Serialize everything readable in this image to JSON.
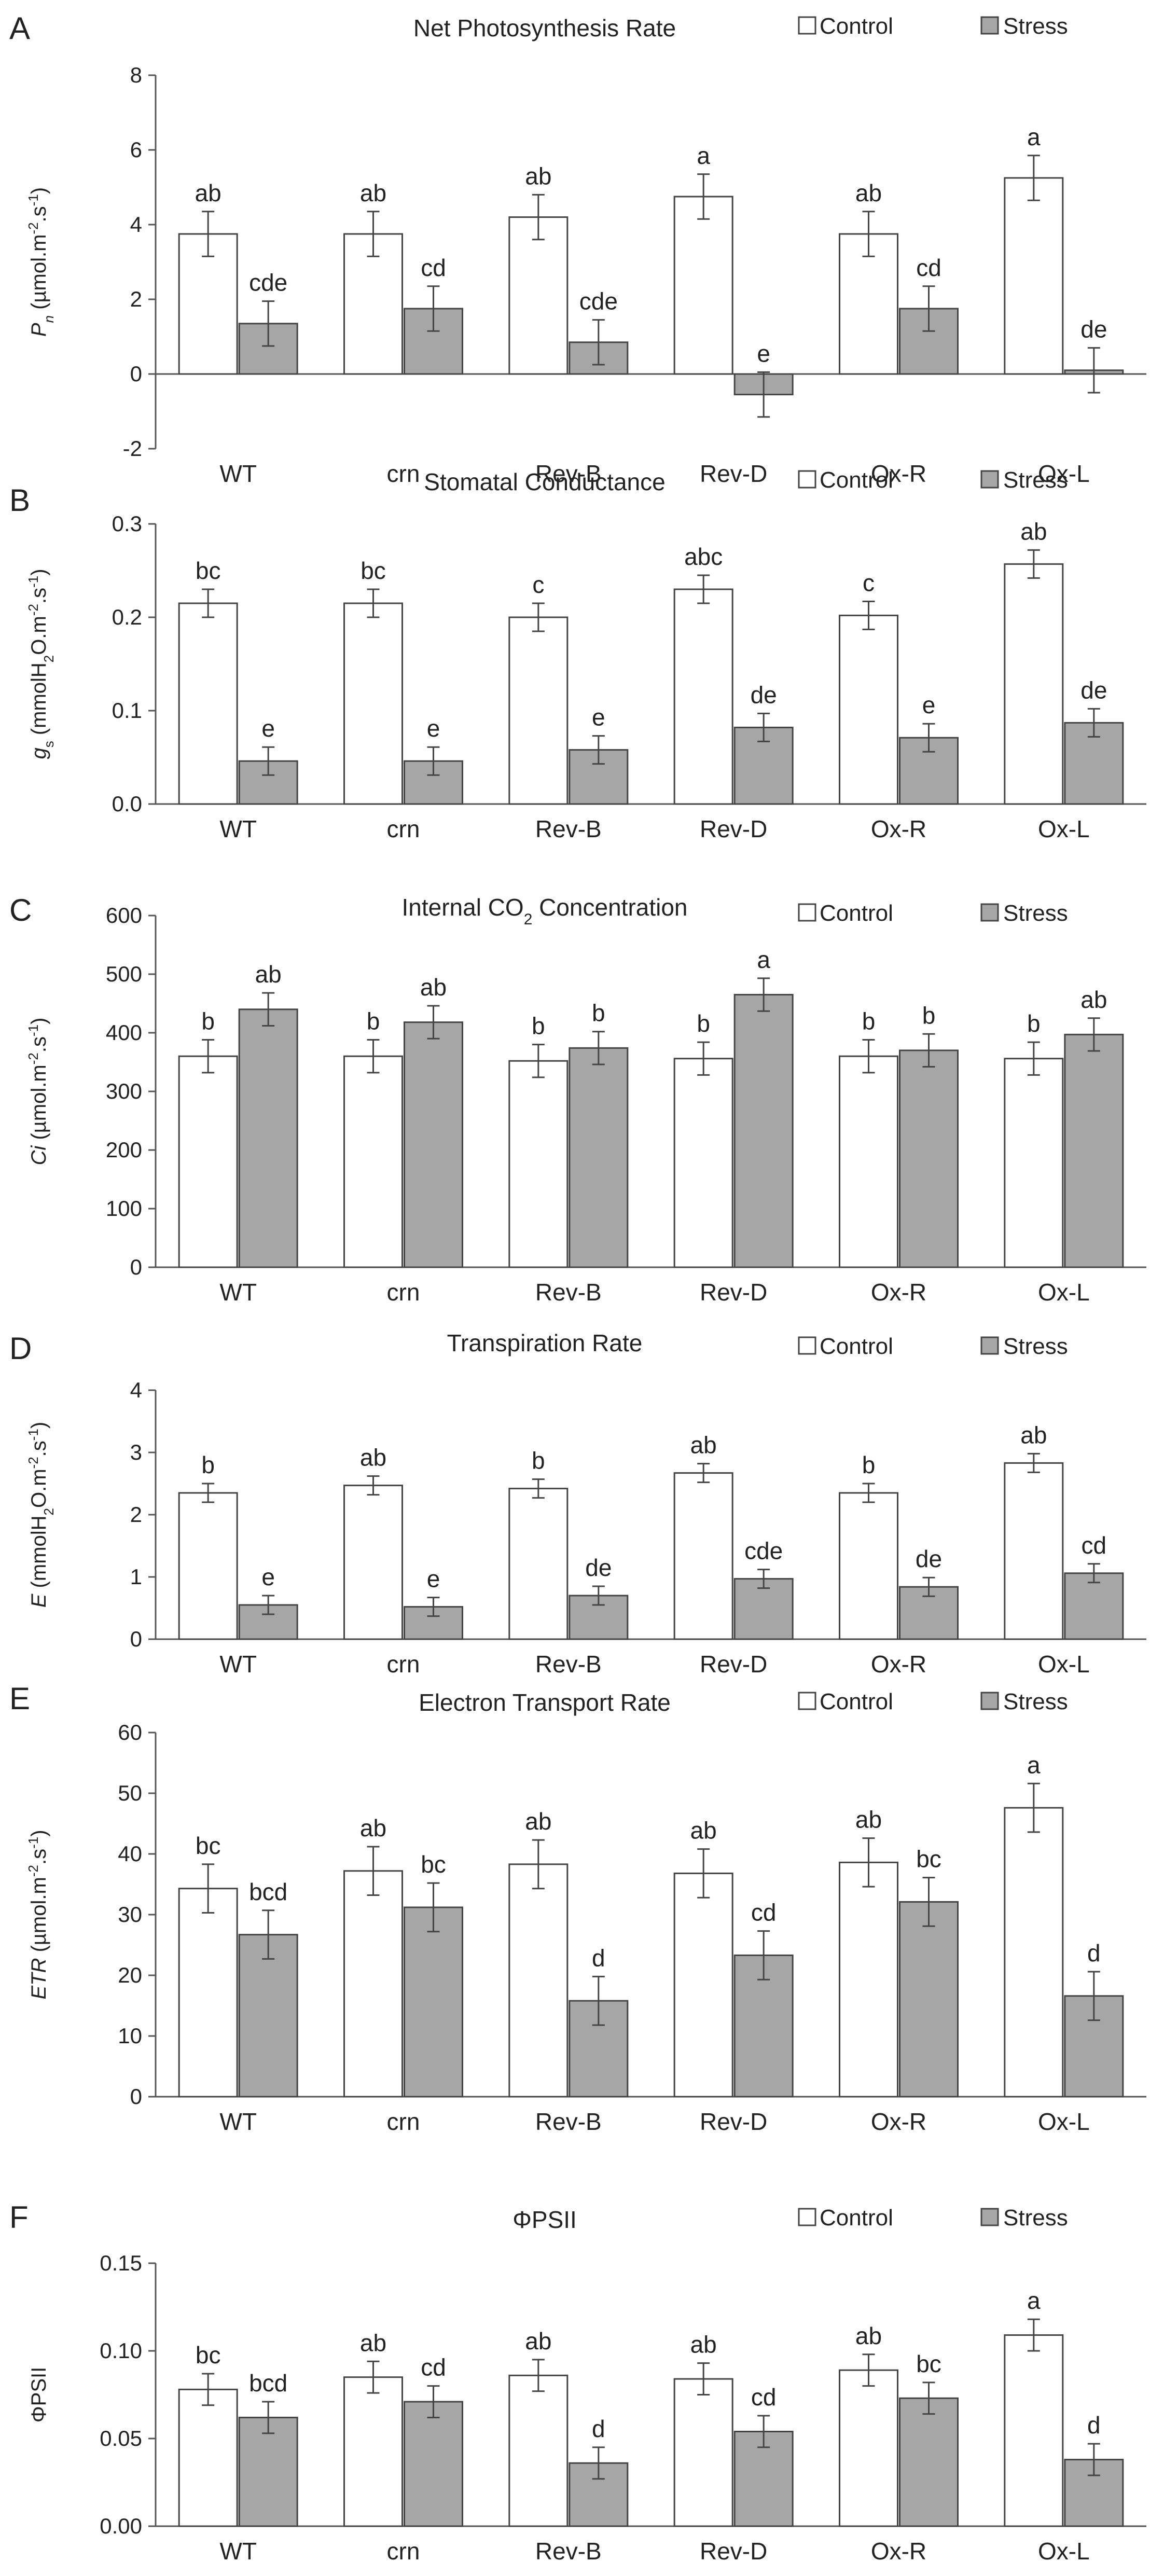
{
  "legend": {
    "control_label": "Control",
    "stress_label": "Stress"
  },
  "colors": {
    "control_fill": "#ffffff",
    "stress_fill": "#a6a6a6",
    "bar_stroke": "#444444",
    "axis": "#555555"
  },
  "chart_data": [
    {
      "panel": "A",
      "type": "bar",
      "title": "Net Photosynthesis Rate",
      "ylabel_parts": [
        {
          "t": "P",
          "s": "i"
        },
        {
          "t": "n",
          "s": "sub-i"
        },
        {
          "t": " (µmol.m",
          "s": "n"
        },
        {
          "t": "-2",
          "s": "sup"
        },
        {
          "t": ".s",
          "s": "n"
        },
        {
          "t": "-1",
          "s": "sup"
        },
        {
          "t": ")",
          "s": "n"
        }
      ],
      "categories": [
        "WT",
        "crn",
        "Rev-B",
        "Rev-D",
        "Ox-R",
        "Ox-L"
      ],
      "ylim": [
        -2,
        8
      ],
      "yticks": [
        "-2",
        "0",
        "2",
        "4",
        "6",
        "8"
      ],
      "series": [
        {
          "name": "Control",
          "values": [
            3.75,
            3.75,
            4.2,
            4.75,
            3.75,
            5.25
          ],
          "errors": [
            0.6,
            0.6,
            0.6,
            0.6,
            0.6,
            0.6
          ],
          "labels": [
            "ab",
            "ab",
            "ab",
            "a",
            "ab",
            "a"
          ]
        },
        {
          "name": "Stress",
          "values": [
            1.35,
            1.75,
            0.85,
            -0.55,
            1.75,
            0.1
          ],
          "errors": [
            0.6,
            0.6,
            0.6,
            0.6,
            0.6,
            0.6
          ],
          "labels": [
            "cde",
            "cd",
            "cde",
            "e",
            "cd",
            "de"
          ]
        }
      ]
    },
    {
      "panel": "B",
      "type": "bar",
      "title": "Stomatal Conductance",
      "ylabel_parts": [
        {
          "t": "g",
          "s": "i"
        },
        {
          "t": "s",
          "s": "sub"
        },
        {
          "t": " (mmolH",
          "s": "n"
        },
        {
          "t": "2",
          "s": "sub"
        },
        {
          "t": "O.m",
          "s": "n"
        },
        {
          "t": "-2",
          "s": "sup"
        },
        {
          "t": ".s",
          "s": "n"
        },
        {
          "t": "-1",
          "s": "sup"
        },
        {
          "t": ")",
          "s": "n"
        }
      ],
      "categories": [
        "WT",
        "crn",
        "Rev-B",
        "Rev-D",
        "Ox-R",
        "Ox-L"
      ],
      "ylim": [
        0,
        0.3
      ],
      "yticks": [
        "0.0",
        "0.1",
        "0.2",
        "0.3"
      ],
      "series": [
        {
          "name": "Control",
          "values": [
            0.215,
            0.215,
            0.2,
            0.23,
            0.202,
            0.257
          ],
          "errors": [
            0.015,
            0.015,
            0.015,
            0.015,
            0.015,
            0.015
          ],
          "labels": [
            "bc",
            "bc",
            "c",
            "abc",
            "c",
            "ab"
          ]
        },
        {
          "name": "Stress",
          "values": [
            0.046,
            0.046,
            0.058,
            0.082,
            0.071,
            0.087
          ],
          "errors": [
            0.015,
            0.015,
            0.015,
            0.015,
            0.015,
            0.015
          ],
          "labels": [
            "e",
            "e",
            "e",
            "de",
            "e",
            "de"
          ]
        }
      ]
    },
    {
      "panel": "C",
      "type": "bar",
      "title_parts": [
        {
          "t": "Internal CO",
          "s": "n"
        },
        {
          "t": "2",
          "s": "sub"
        },
        {
          "t": " Concentration",
          "s": "n"
        }
      ],
      "ylabel_parts": [
        {
          "t": "Ci",
          "s": "i"
        },
        {
          "t": " (µmol.m",
          "s": "n"
        },
        {
          "t": "-2",
          "s": "sup"
        },
        {
          "t": ".s",
          "s": "n"
        },
        {
          "t": "-1",
          "s": "sup"
        },
        {
          "t": ")",
          "s": "n"
        }
      ],
      "categories": [
        "WT",
        "crn",
        "Rev-B",
        "Rev-D",
        "Ox-R",
        "Ox-L"
      ],
      "ylim": [
        0,
        600
      ],
      "yticks": [
        "0",
        "100",
        "200",
        "300",
        "400",
        "500",
        "600"
      ],
      "series": [
        {
          "name": "Control",
          "values": [
            360,
            360,
            352,
            356,
            360,
            356
          ],
          "errors": [
            28,
            28,
            28,
            28,
            28,
            28
          ],
          "labels": [
            "b",
            "b",
            "b",
            "b",
            "b",
            "b"
          ]
        },
        {
          "name": "Stress",
          "values": [
            440,
            418,
            374,
            465,
            370,
            397
          ],
          "errors": [
            28,
            28,
            28,
            28,
            28,
            28
          ],
          "labels": [
            "ab",
            "ab",
            "b",
            "a",
            "b",
            "ab"
          ]
        }
      ]
    },
    {
      "panel": "D",
      "type": "bar",
      "title": "Transpiration Rate",
      "ylabel_parts": [
        {
          "t": "E",
          "s": "i"
        },
        {
          "t": " (mmolH",
          "s": "n"
        },
        {
          "t": "2",
          "s": "sub"
        },
        {
          "t": "O.m",
          "s": "n"
        },
        {
          "t": "-2",
          "s": "sup"
        },
        {
          "t": ".s",
          "s": "n"
        },
        {
          "t": "-1",
          "s": "sup"
        },
        {
          "t": ")",
          "s": "n"
        }
      ],
      "categories": [
        "WT",
        "crn",
        "Rev-B",
        "Rev-D",
        "Ox-R",
        "Ox-L"
      ],
      "ylim": [
        0,
        4
      ],
      "yticks": [
        "0",
        "1",
        "2",
        "3",
        "4"
      ],
      "series": [
        {
          "name": "Control",
          "values": [
            2.35,
            2.47,
            2.42,
            2.67,
            2.35,
            2.83
          ],
          "errors": [
            0.15,
            0.15,
            0.15,
            0.15,
            0.15,
            0.15
          ],
          "labels": [
            "b",
            "ab",
            "b",
            "ab",
            "b",
            "ab"
          ]
        },
        {
          "name": "Stress",
          "values": [
            0.55,
            0.52,
            0.7,
            0.97,
            0.84,
            1.06
          ],
          "errors": [
            0.15,
            0.15,
            0.15,
            0.15,
            0.15,
            0.15
          ],
          "labels": [
            "e",
            "e",
            "de",
            "cde",
            "de",
            "cd"
          ]
        }
      ]
    },
    {
      "panel": "E",
      "type": "bar",
      "title": "Electron Transport Rate",
      "ylabel_parts": [
        {
          "t": "ETR",
          "s": "i"
        },
        {
          "t": " (µmol.m",
          "s": "n"
        },
        {
          "t": "-2",
          "s": "sup"
        },
        {
          "t": ".s",
          "s": "n"
        },
        {
          "t": "-1",
          "s": "sup"
        },
        {
          "t": ")",
          "s": "n"
        }
      ],
      "categories": [
        "WT",
        "crn",
        "Rev-B",
        "Rev-D",
        "Ox-R",
        "Ox-L"
      ],
      "ylim": [
        0,
        60
      ],
      "yticks": [
        "0",
        "10",
        "20",
        "30",
        "40",
        "50",
        "60"
      ],
      "series": [
        {
          "name": "Control",
          "values": [
            34.3,
            37.2,
            38.3,
            36.8,
            38.6,
            47.6
          ],
          "errors": [
            4,
            4,
            4,
            4,
            4,
            4
          ],
          "labels": [
            "bc",
            "ab",
            "ab",
            "ab",
            "ab",
            "a"
          ]
        },
        {
          "name": "Stress",
          "values": [
            26.7,
            31.2,
            15.8,
            23.3,
            32.1,
            16.6
          ],
          "errors": [
            4,
            4,
            4,
            4,
            4,
            4
          ],
          "labels": [
            "bcd",
            "bc",
            "d",
            "cd",
            "bc",
            "d"
          ]
        }
      ]
    },
    {
      "panel": "F",
      "type": "bar",
      "title": "ΦPSII",
      "ylabel_parts": [
        {
          "t": "ΦPSII",
          "s": "n"
        }
      ],
      "categories": [
        "WT",
        "crn",
        "Rev-B",
        "Rev-D",
        "Ox-R",
        "Ox-L"
      ],
      "ylim": [
        0,
        0.15
      ],
      "yticks": [
        "0.00",
        "0.05",
        "0.10",
        "0.15"
      ],
      "series": [
        {
          "name": "Control",
          "values": [
            0.078,
            0.085,
            0.086,
            0.084,
            0.089,
            0.109
          ],
          "errors": [
            0.009,
            0.009,
            0.009,
            0.009,
            0.009,
            0.009
          ],
          "labels": [
            "bc",
            "ab",
            "ab",
            "ab",
            "ab",
            "a"
          ]
        },
        {
          "name": "Stress",
          "values": [
            0.062,
            0.071,
            0.036,
            0.054,
            0.073,
            0.038
          ],
          "errors": [
            0.009,
            0.009,
            0.009,
            0.009,
            0.009,
            0.009
          ],
          "labels": [
            "bcd",
            "cd",
            "d",
            "cd",
            "bc",
            "d"
          ]
        }
      ]
    }
  ]
}
